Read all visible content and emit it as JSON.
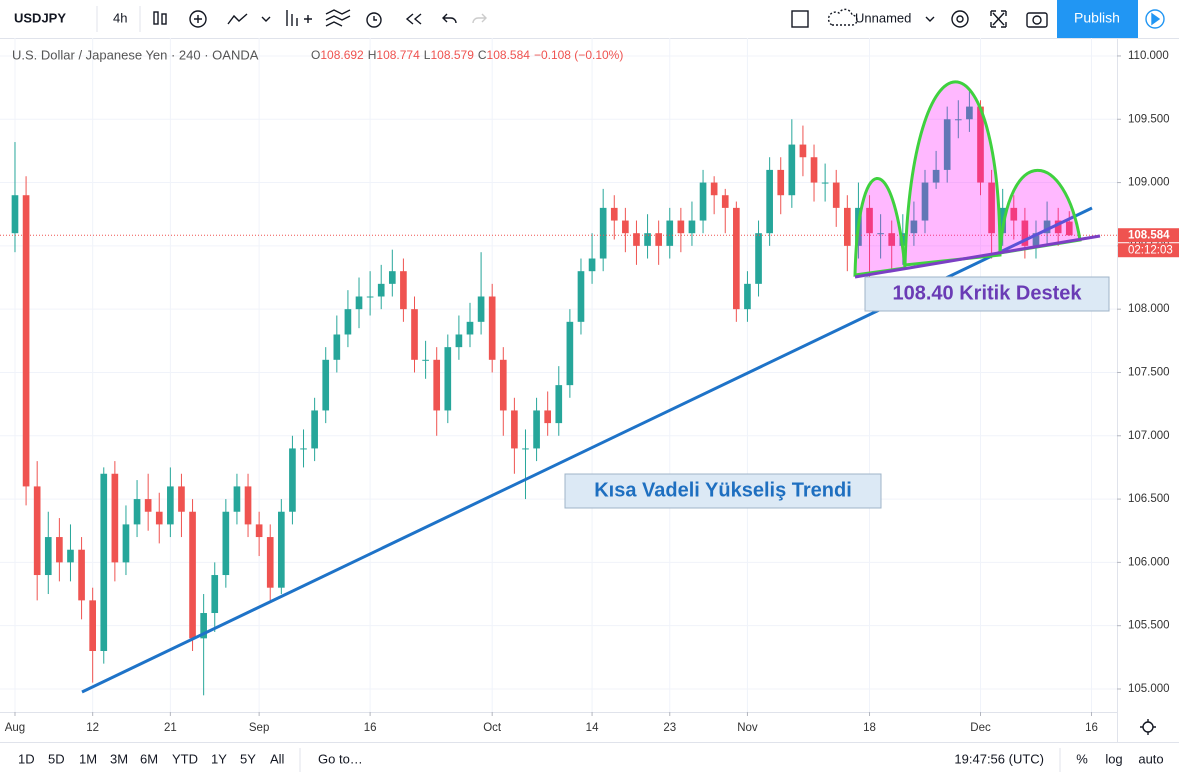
{
  "toolbar": {
    "symbol": "USDJPY",
    "interval": "4h",
    "layout_name": "Unnamed",
    "publish": "Publish"
  },
  "legend": {
    "title": "U.S. Dollar / Japanese Yen · 240 · OANDA",
    "ohlc": [
      {
        "label": "O",
        "value": "108.692"
      },
      {
        "label": "H",
        "value": "108.774"
      },
      {
        "label": "L",
        "value": "108.579"
      },
      {
        "label": "C",
        "value": "108.584"
      }
    ],
    "change": "−0.108 (−0.10%)"
  },
  "chart_data": {
    "type": "candlestick",
    "x": [
      0,
      1,
      2,
      3,
      4,
      5,
      6,
      7,
      8,
      9,
      10,
      11,
      12,
      13,
      14,
      15,
      16,
      17,
      18,
      19,
      20,
      21,
      22,
      23,
      24,
      25,
      26,
      27,
      28,
      29,
      30,
      31,
      32,
      33,
      34,
      35,
      36,
      37,
      38,
      39,
      40,
      41,
      42,
      43,
      44,
      45,
      46,
      47,
      48,
      49,
      50,
      51,
      52,
      53,
      54,
      55,
      56,
      57,
      58,
      59,
      60,
      61,
      62,
      63,
      64,
      65,
      66,
      67,
      68,
      69,
      70,
      71,
      72,
      73,
      74,
      75,
      76,
      77,
      78,
      79,
      80,
      81,
      82,
      83,
      84,
      85,
      86,
      87,
      88,
      89,
      90,
      91,
      92,
      93,
      94,
      95
    ],
    "open": [
      108.6,
      108.9,
      106.6,
      105.9,
      106.2,
      106.0,
      106.1,
      105.7,
      105.3,
      106.7,
      106.0,
      106.3,
      106.5,
      106.4,
      106.3,
      106.6,
      106.4,
      105.4,
      105.6,
      105.9,
      106.4,
      106.6,
      106.3,
      106.2,
      105.8,
      106.4,
      106.9,
      106.9,
      107.2,
      107.6,
      107.8,
      108.0,
      108.1,
      108.1,
      108.2,
      108.3,
      108.0,
      107.6,
      107.6,
      107.2,
      107.7,
      107.8,
      107.9,
      108.1,
      107.6,
      107.2,
      106.9,
      106.9,
      107.2,
      107.1,
      107.4,
      107.9,
      108.3,
      108.4,
      108.8,
      108.7,
      108.6,
      108.5,
      108.6,
      108.5,
      108.7,
      108.6,
      108.7,
      109.0,
      108.9,
      108.8,
      108.0,
      108.2,
      108.6,
      109.1,
      108.9,
      109.3,
      109.2,
      109.0,
      109.0,
      108.8,
      108.5,
      108.8,
      108.6,
      108.6,
      108.5,
      108.6,
      108.7,
      109.0,
      109.1,
      109.5,
      109.5,
      109.6,
      109.0,
      108.6,
      108.8,
      108.7,
      108.5,
      108.6,
      108.7,
      108.692
    ],
    "high": [
      109.32,
      109.05,
      106.8,
      106.4,
      106.35,
      106.3,
      106.2,
      105.8,
      106.75,
      106.8,
      106.45,
      106.65,
      106.7,
      106.55,
      106.75,
      106.7,
      106.5,
      105.75,
      106.0,
      106.5,
      106.7,
      106.7,
      106.4,
      106.3,
      106.5,
      107.0,
      107.05,
      107.3,
      107.7,
      107.95,
      108.15,
      108.25,
      108.3,
      108.35,
      108.47,
      108.4,
      108.1,
      107.75,
      107.7,
      107.8,
      107.95,
      108.05,
      108.45,
      108.2,
      107.7,
      107.3,
      107.05,
      107.3,
      107.35,
      107.55,
      108.0,
      108.4,
      108.6,
      108.95,
      108.9,
      108.8,
      108.7,
      108.75,
      108.7,
      108.8,
      108.8,
      108.85,
      109.1,
      109.05,
      108.95,
      108.85,
      108.3,
      108.7,
      109.2,
      109.2,
      109.5,
      109.45,
      109.3,
      109.15,
      109.1,
      108.9,
      109.0,
      108.9,
      108.75,
      108.7,
      108.75,
      108.85,
      109.1,
      109.25,
      109.6,
      109.65,
      109.72,
      109.65,
      109.1,
      108.95,
      108.9,
      108.8,
      108.7,
      108.85,
      108.8,
      108.774
    ],
    "low": [
      108.45,
      106.45,
      105.7,
      105.75,
      105.85,
      105.85,
      105.55,
      105.05,
      105.2,
      105.85,
      105.9,
      106.2,
      106.25,
      106.15,
      106.2,
      106.2,
      105.3,
      104.95,
      105.45,
      105.8,
      106.3,
      106.2,
      106.05,
      105.7,
      105.75,
      106.3,
      106.75,
      106.8,
      107.1,
      107.5,
      107.7,
      107.85,
      107.95,
      108.0,
      108.1,
      107.9,
      107.5,
      107.45,
      107.0,
      107.1,
      107.6,
      107.7,
      107.8,
      107.5,
      107.0,
      106.7,
      106.5,
      106.8,
      107.0,
      107.0,
      107.3,
      107.8,
      108.2,
      108.3,
      108.55,
      108.45,
      108.35,
      108.4,
      108.35,
      108.4,
      108.45,
      108.5,
      108.6,
      108.75,
      108.6,
      107.9,
      107.9,
      108.1,
      108.5,
      108.75,
      108.8,
      109.05,
      108.85,
      108.85,
      108.65,
      108.3,
      108.4,
      108.25,
      108.4,
      108.3,
      108.35,
      108.5,
      108.6,
      108.95,
      109.0,
      109.35,
      109.4,
      108.9,
      108.4,
      108.5,
      108.55,
      108.4,
      108.4,
      108.5,
      108.5,
      108.579
    ],
    "close": [
      108.9,
      106.6,
      105.9,
      106.2,
      106.0,
      106.1,
      105.7,
      105.3,
      106.7,
      106.0,
      106.3,
      106.5,
      106.4,
      106.3,
      106.6,
      106.4,
      105.4,
      105.6,
      105.9,
      106.4,
      106.6,
      106.3,
      106.2,
      105.8,
      106.4,
      106.9,
      106.9,
      107.2,
      107.6,
      107.8,
      108.0,
      108.1,
      108.1,
      108.2,
      108.3,
      108.0,
      107.6,
      107.6,
      107.2,
      107.7,
      107.8,
      107.9,
      108.1,
      107.6,
      107.2,
      106.9,
      106.9,
      107.2,
      107.1,
      107.4,
      107.9,
      108.3,
      108.4,
      108.8,
      108.7,
      108.6,
      108.5,
      108.6,
      108.5,
      108.7,
      108.6,
      108.7,
      109.0,
      108.9,
      108.8,
      108.0,
      108.2,
      108.6,
      109.1,
      108.9,
      109.3,
      109.2,
      109.0,
      109.0,
      108.8,
      108.5,
      108.8,
      108.6,
      108.6,
      108.5,
      108.6,
      108.7,
      109.0,
      109.1,
      109.5,
      109.5,
      109.6,
      109.0,
      108.6,
      108.8,
      108.7,
      108.5,
      108.6,
      108.7,
      108.6,
      108.584
    ],
    "up_color": "#26a69a",
    "down_color": "#ef5350",
    "xlim": [
      -1.35,
      99.3
    ],
    "xticks": [
      {
        "value": 0,
        "label": "Aug"
      },
      {
        "value": 7,
        "label": "12"
      },
      {
        "value": 14,
        "label": "21"
      },
      {
        "value": 22,
        "label": "Sep"
      },
      {
        "value": 32,
        "label": "16"
      },
      {
        "value": 43,
        "label": "Oct"
      },
      {
        "value": 52,
        "label": "14"
      },
      {
        "value": 59,
        "label": "23"
      },
      {
        "value": 66,
        "label": "Nov"
      },
      {
        "value": 77,
        "label": "18"
      },
      {
        "value": 87,
        "label": "Dec"
      },
      {
        "value": 97,
        "label": "16"
      }
    ],
    "ylim": [
      104.834,
      110.126
    ],
    "yticks": [
      {
        "value": 105,
        "label": "105.000"
      },
      {
        "value": 105.5,
        "label": "105.500"
      },
      {
        "value": 106,
        "label": "106.000"
      },
      {
        "value": 106.5,
        "label": "106.500"
      },
      {
        "value": 107,
        "label": "107.000"
      },
      {
        "value": 107.5,
        "label": "107.500"
      },
      {
        "value": 108,
        "label": "108.000"
      },
      {
        "value": 108.5,
        "label": "108.500"
      },
      {
        "value": 109,
        "label": "109.000"
      },
      {
        "value": 109.5,
        "label": "109.500"
      },
      {
        "value": 110,
        "label": "110.000"
      }
    ],
    "grid": true,
    "last_price_label": "108.584",
    "countdown": "02:12:03",
    "annotations": [
      "Kısa Vadeli Yükseliş Trendi",
      "108.40 Kritik Destek"
    ]
  },
  "bottom_bar": {
    "ranges": [
      "1D",
      "5D",
      "1M",
      "3M",
      "6M",
      "YTD",
      "1Y",
      "5Y",
      "All"
    ],
    "goto": "Go to…",
    "clock": "19:47:56 (UTC)",
    "options": [
      "%",
      "log",
      "auto"
    ]
  }
}
